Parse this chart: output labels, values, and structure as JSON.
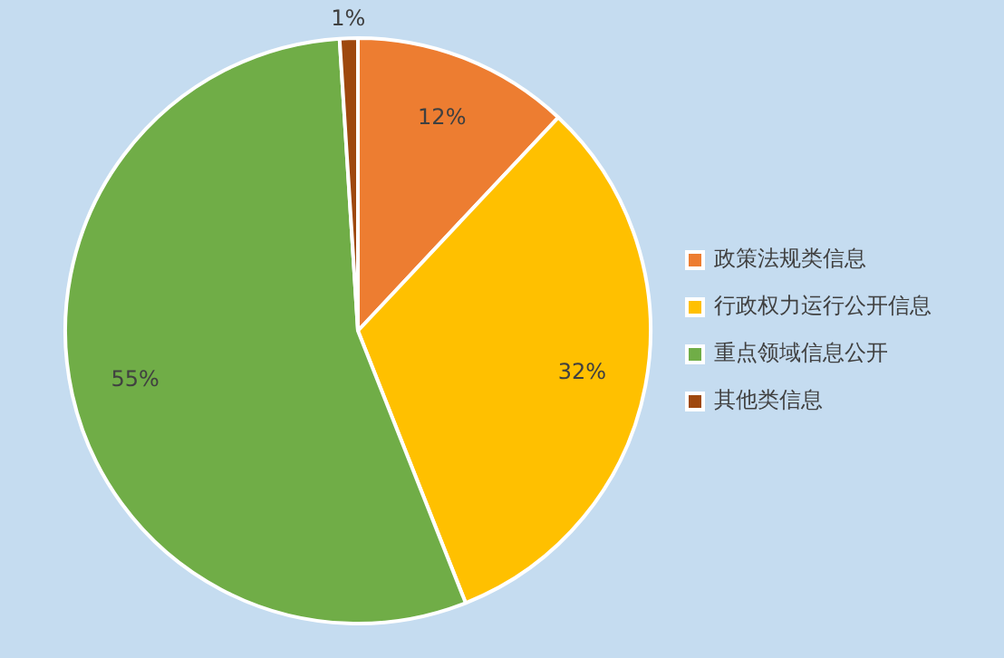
{
  "chart_data": {
    "type": "pie",
    "categories": [
      "政策法规类信息",
      "行政权力运行公开信息",
      "重点领域信息公开",
      "其他类信息"
    ],
    "values": [
      12,
      32,
      55,
      1
    ],
    "colors": [
      "#ed7d31",
      "#ffc000",
      "#70ad47",
      "#9e480e"
    ],
    "value_labels": [
      "12%",
      "32%",
      "55%",
      "1%"
    ],
    "legend": "right"
  }
}
